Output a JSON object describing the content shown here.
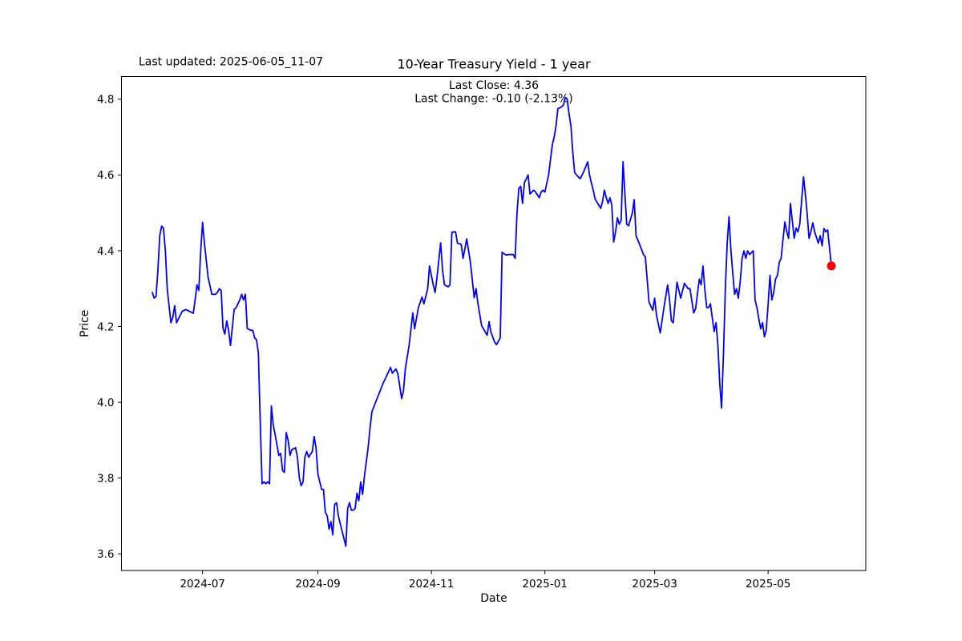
{
  "header": {
    "last_updated": "Last updated: 2025-06-05_11-07",
    "title": "10-Year Treasury Yield - 1 year"
  },
  "annotation": {
    "last_close": "Last Close: 4.36",
    "last_change": "Last Change: -0.10 (-2.13%)"
  },
  "chart_data": {
    "type": "line",
    "title": "10-Year Treasury Yield - 1 year",
    "xlabel": "Date",
    "ylabel": "Price",
    "last_close": 4.36,
    "last_change": -0.1,
    "last_change_pct": "-2.13%",
    "grid": false,
    "legend": "none",
    "x_epoch": "2024-06-04",
    "x_unit": "days since x_epoch",
    "xlim": [
      -16.6,
      383.5
    ],
    "ylim": [
      3.556,
      4.86
    ],
    "x_ticks": [
      {
        "label": "2024-07",
        "t": 27
      },
      {
        "label": "2024-09",
        "t": 89
      },
      {
        "label": "2024-11",
        "t": 150
      },
      {
        "label": "2025-01",
        "t": 211
      },
      {
        "label": "2025-03",
        "t": 270
      },
      {
        "label": "2025-05",
        "t": 331
      }
    ],
    "y_ticks": [
      3.6,
      3.8,
      4.0,
      4.2,
      4.4,
      4.6,
      4.8
    ],
    "series": [
      {
        "name": "10-Year Treasury Yield",
        "color": "#0000ff",
        "points": [
          [
            0,
            4.29
          ],
          [
            1,
            4.275
          ],
          [
            2,
            4.28
          ],
          [
            3,
            4.35
          ],
          [
            4,
            4.44
          ],
          [
            5,
            4.465
          ],
          [
            6,
            4.46
          ],
          [
            7,
            4.4
          ],
          [
            8,
            4.3
          ],
          [
            10,
            4.21
          ],
          [
            11,
            4.225
          ],
          [
            12,
            4.255
          ],
          [
            13,
            4.21
          ],
          [
            14,
            4.22
          ],
          [
            16,
            4.24
          ],
          [
            18,
            4.245
          ],
          [
            20,
            4.24
          ],
          [
            22,
            4.235
          ],
          [
            23,
            4.27
          ],
          [
            24,
            4.31
          ],
          [
            25,
            4.295
          ],
          [
            26,
            4.4
          ],
          [
            27,
            4.475
          ],
          [
            28,
            4.42
          ],
          [
            30,
            4.33
          ],
          [
            32,
            4.285
          ],
          [
            34,
            4.285
          ],
          [
            35,
            4.29
          ],
          [
            36,
            4.3
          ],
          [
            37,
            4.295
          ],
          [
            38,
            4.195
          ],
          [
            39,
            4.18
          ],
          [
            40,
            4.215
          ],
          [
            41,
            4.19
          ],
          [
            42,
            4.15
          ],
          [
            44,
            4.245
          ],
          [
            45,
            4.25
          ],
          [
            47,
            4.27
          ],
          [
            48,
            4.285
          ],
          [
            49,
            4.27
          ],
          [
            50,
            4.285
          ],
          [
            51,
            4.195
          ],
          [
            53,
            4.19
          ],
          [
            54,
            4.19
          ],
          [
            55,
            4.17
          ],
          [
            56,
            4.165
          ],
          [
            57,
            4.13
          ],
          [
            58,
            3.95
          ],
          [
            59,
            3.785
          ],
          [
            60,
            3.79
          ],
          [
            61,
            3.785
          ],
          [
            62,
            3.79
          ],
          [
            63,
            3.785
          ],
          [
            64,
            3.99
          ],
          [
            65,
            3.94
          ],
          [
            66,
            3.915
          ],
          [
            68,
            3.86
          ],
          [
            69,
            3.865
          ],
          [
            70,
            3.82
          ],
          [
            71,
            3.815
          ],
          [
            72,
            3.92
          ],
          [
            73,
            3.9
          ],
          [
            74,
            3.86
          ],
          [
            75,
            3.875
          ],
          [
            77,
            3.88
          ],
          [
            78,
            3.855
          ],
          [
            79,
            3.8
          ],
          [
            80,
            3.78
          ],
          [
            81,
            3.79
          ],
          [
            82,
            3.855
          ],
          [
            83,
            3.87
          ],
          [
            84,
            3.855
          ],
          [
            86,
            3.87
          ],
          [
            87,
            3.91
          ],
          [
            88,
            3.88
          ],
          [
            89,
            3.81
          ],
          [
            90,
            3.79
          ],
          [
            91,
            3.77
          ],
          [
            92,
            3.77
          ],
          [
            93,
            3.71
          ],
          [
            94,
            3.7
          ],
          [
            95,
            3.665
          ],
          [
            96,
            3.685
          ],
          [
            97,
            3.65
          ],
          [
            98,
            3.73
          ],
          [
            99,
            3.735
          ],
          [
            100,
            3.7
          ],
          [
            101,
            3.68
          ],
          [
            102,
            3.66
          ],
          [
            103,
            3.64
          ],
          [
            104,
            3.62
          ],
          [
            105,
            3.72
          ],
          [
            106,
            3.735
          ],
          [
            107,
            3.715
          ],
          [
            108,
            3.715
          ],
          [
            109,
            3.72
          ],
          [
            110,
            3.76
          ],
          [
            111,
            3.74
          ],
          [
            112,
            3.79
          ],
          [
            113,
            3.757
          ],
          [
            114,
            3.805
          ],
          [
            116,
            3.88
          ],
          [
            117,
            3.93
          ],
          [
            118,
            3.975
          ],
          [
            120,
            4.0
          ],
          [
            122,
            4.024
          ],
          [
            124,
            4.05
          ],
          [
            126,
            4.07
          ],
          [
            128,
            4.092
          ],
          [
            129,
            4.077
          ],
          [
            131,
            4.088
          ],
          [
            132,
            4.074
          ],
          [
            134,
            4.01
          ],
          [
            135,
            4.03
          ],
          [
            136,
            4.088
          ],
          [
            138,
            4.15
          ],
          [
            140,
            4.236
          ],
          [
            141,
            4.194
          ],
          [
            143,
            4.25
          ],
          [
            145,
            4.278
          ],
          [
            146,
            4.26
          ],
          [
            148,
            4.3
          ],
          [
            149,
            4.36
          ],
          [
            151,
            4.31
          ],
          [
            152,
            4.29
          ],
          [
            153,
            4.33
          ],
          [
            155,
            4.421
          ],
          [
            156,
            4.35
          ],
          [
            157,
            4.31
          ],
          [
            159,
            4.305
          ],
          [
            160,
            4.31
          ],
          [
            161,
            4.449
          ],
          [
            163,
            4.45
          ],
          [
            164,
            4.42
          ],
          [
            166,
            4.417
          ],
          [
            167,
            4.38
          ],
          [
            169,
            4.431
          ],
          [
            171,
            4.368
          ],
          [
            173,
            4.276
          ],
          [
            174,
            4.3
          ],
          [
            175,
            4.262
          ],
          [
            177,
            4.202
          ],
          [
            179,
            4.185
          ],
          [
            180,
            4.177
          ],
          [
            181,
            4.213
          ],
          [
            182,
            4.185
          ],
          [
            184,
            4.159
          ],
          [
            185,
            4.152
          ],
          [
            187,
            4.17
          ],
          [
            188,
            4.396
          ],
          [
            190,
            4.389
          ],
          [
            192,
            4.39
          ],
          [
            194,
            4.39
          ],
          [
            195,
            4.38
          ],
          [
            196,
            4.5
          ],
          [
            197,
            4.565
          ],
          [
            198,
            4.57
          ],
          [
            199,
            4.525
          ],
          [
            200,
            4.58
          ],
          [
            202,
            4.6
          ],
          [
            203,
            4.55
          ],
          [
            204,
            4.555
          ],
          [
            205,
            4.56
          ],
          [
            206,
            4.555
          ],
          [
            208,
            4.54
          ],
          [
            209,
            4.555
          ],
          [
            210,
            4.56
          ],
          [
            211,
            4.555
          ],
          [
            213,
            4.6
          ],
          [
            215,
            4.68
          ],
          [
            216,
            4.7
          ],
          [
            217,
            4.73
          ],
          [
            218,
            4.775
          ],
          [
            220,
            4.78
          ],
          [
            221,
            4.785
          ],
          [
            222,
            4.805
          ],
          [
            223,
            4.8
          ],
          [
            224,
            4.76
          ],
          [
            225,
            4.73
          ],
          [
            226,
            4.66
          ],
          [
            227,
            4.607
          ],
          [
            228,
            4.6
          ],
          [
            230,
            4.59
          ],
          [
            231,
            4.6
          ],
          [
            232,
            4.61
          ],
          [
            234,
            4.635
          ],
          [
            235,
            4.6
          ],
          [
            236,
            4.579
          ],
          [
            237,
            4.56
          ],
          [
            238,
            4.537
          ],
          [
            240,
            4.52
          ],
          [
            241,
            4.512
          ],
          [
            242,
            4.53
          ],
          [
            243,
            4.56
          ],
          [
            244,
            4.54
          ],
          [
            245,
            4.525
          ],
          [
            246,
            4.54
          ],
          [
            247,
            4.52
          ],
          [
            248,
            4.423
          ],
          [
            249,
            4.45
          ],
          [
            250,
            4.487
          ],
          [
            251,
            4.47
          ],
          [
            252,
            4.48
          ],
          [
            253,
            4.635
          ],
          [
            254,
            4.55
          ],
          [
            255,
            4.47
          ],
          [
            256,
            4.466
          ],
          [
            258,
            4.5
          ],
          [
            259,
            4.535
          ],
          [
            260,
            4.44
          ],
          [
            262,
            4.416
          ],
          [
            264,
            4.39
          ],
          [
            265,
            4.384
          ],
          [
            267,
            4.264
          ],
          [
            269,
            4.243
          ],
          [
            270,
            4.275
          ],
          [
            271,
            4.23
          ],
          [
            273,
            4.183
          ],
          [
            275,
            4.25
          ],
          [
            277,
            4.31
          ],
          [
            278,
            4.27
          ],
          [
            279,
            4.215
          ],
          [
            280,
            4.21
          ],
          [
            282,
            4.317
          ],
          [
            284,
            4.275
          ],
          [
            286,
            4.314
          ],
          [
            288,
            4.3
          ],
          [
            289,
            4.3
          ],
          [
            291,
            4.236
          ],
          [
            292,
            4.247
          ],
          [
            294,
            4.325
          ],
          [
            295,
            4.31
          ],
          [
            296,
            4.36
          ],
          [
            297,
            4.296
          ],
          [
            298,
            4.25
          ],
          [
            299,
            4.25
          ],
          [
            300,
            4.26
          ],
          [
            301,
            4.223
          ],
          [
            302,
            4.187
          ],
          [
            303,
            4.21
          ],
          [
            304,
            4.151
          ],
          [
            305,
            4.05
          ],
          [
            306,
            3.985
          ],
          [
            307,
            4.13
          ],
          [
            308,
            4.3
          ],
          [
            309,
            4.42
          ],
          [
            310,
            4.49
          ],
          [
            311,
            4.4
          ],
          [
            312,
            4.34
          ],
          [
            313,
            4.285
          ],
          [
            314,
            4.3
          ],
          [
            315,
            4.275
          ],
          [
            316,
            4.32
          ],
          [
            317,
            4.38
          ],
          [
            318,
            4.4
          ],
          [
            319,
            4.38
          ],
          [
            320,
            4.4
          ],
          [
            321,
            4.39
          ],
          [
            322,
            4.395
          ],
          [
            323,
            4.4
          ],
          [
            324,
            4.27
          ],
          [
            325,
            4.25
          ],
          [
            326,
            4.22
          ],
          [
            327,
            4.194
          ],
          [
            328,
            4.21
          ],
          [
            329,
            4.173
          ],
          [
            330,
            4.19
          ],
          [
            331,
            4.26
          ],
          [
            332,
            4.335
          ],
          [
            333,
            4.27
          ],
          [
            334,
            4.29
          ],
          [
            335,
            4.325
          ],
          [
            336,
            4.335
          ],
          [
            337,
            4.37
          ],
          [
            338,
            4.38
          ],
          [
            339,
            4.43
          ],
          [
            340,
            4.476
          ],
          [
            341,
            4.45
          ],
          [
            342,
            4.433
          ],
          [
            343,
            4.525
          ],
          [
            344,
            4.48
          ],
          [
            345,
            4.433
          ],
          [
            346,
            4.46
          ],
          [
            347,
            4.45
          ],
          [
            348,
            4.47
          ],
          [
            350,
            4.595
          ],
          [
            351,
            4.55
          ],
          [
            352,
            4.497
          ],
          [
            353,
            4.433
          ],
          [
            354,
            4.45
          ],
          [
            355,
            4.474
          ],
          [
            356,
            4.45
          ],
          [
            358,
            4.42
          ],
          [
            359,
            4.44
          ],
          [
            360,
            4.413
          ],
          [
            361,
            4.459
          ],
          [
            362,
            4.45
          ],
          [
            363,
            4.455
          ],
          [
            365,
            4.36
          ]
        ]
      }
    ],
    "end_marker": {
      "color": "#ff0000",
      "t": 365,
      "value": 4.36,
      "radius": 5.5
    }
  }
}
